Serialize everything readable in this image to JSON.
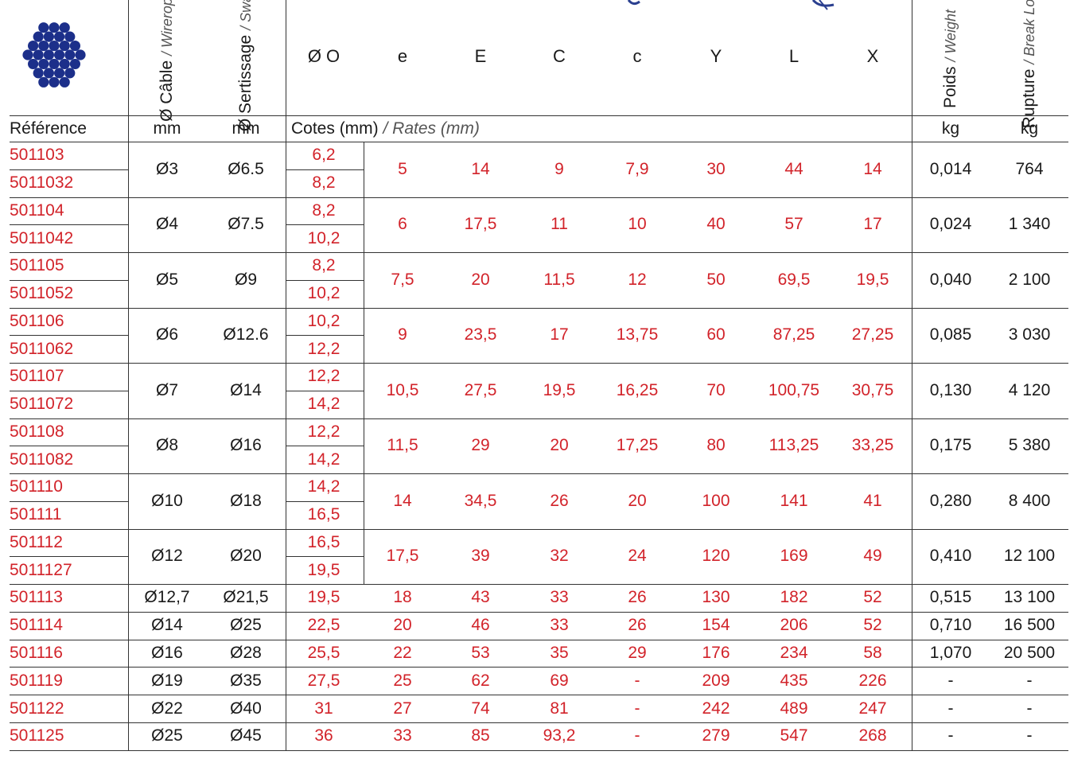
{
  "header": {
    "cable": {
      "main": "Ø Câble",
      "sub": "/ Wirerope"
    },
    "swaging": {
      "main": "Ø Sertissage",
      "sub": "/ Swaging"
    },
    "dims": [
      "Ø O",
      "e",
      "E",
      "C",
      "c",
      "Y",
      "L",
      "X"
    ],
    "weight": {
      "main": "Poids",
      "sub": "/ Weight"
    },
    "break_load": {
      "main": "Rupture",
      "sub": "/ Break Load"
    }
  },
  "units": {
    "reference": "Référence",
    "cable": "mm",
    "swaging": "mm",
    "cotes_main": "Cotes (mm)",
    "cotes_sub": "/ Rates (mm)",
    "weight": "kg",
    "break": "kg"
  },
  "paired_rows": [
    {
      "refs": [
        "501103",
        "5011032"
      ],
      "cable": "Ø3",
      "swaging": "Ø6.5",
      "o": [
        "6,2",
        "8,2"
      ],
      "e": "5",
      "E": "14",
      "C": "9",
      "c": "7,9",
      "Y": "30",
      "L": "44",
      "X": "14",
      "weight": "0,014",
      "break": "764"
    },
    {
      "refs": [
        "501104",
        "5011042"
      ],
      "cable": "Ø4",
      "swaging": "Ø7.5",
      "o": [
        "8,2",
        "10,2"
      ],
      "e": "6",
      "E": "17,5",
      "C": "11",
      "c": "10",
      "Y": "40",
      "L": "57",
      "X": "17",
      "weight": "0,024",
      "break": "1 340"
    },
    {
      "refs": [
        "501105",
        "5011052"
      ],
      "cable": "Ø5",
      "swaging": "Ø9",
      "o": [
        "8,2",
        "10,2"
      ],
      "e": "7,5",
      "E": "20",
      "C": "11,5",
      "c": "12",
      "Y": "50",
      "L": "69,5",
      "X": "19,5",
      "weight": "0,040",
      "break": "2 100"
    },
    {
      "refs": [
        "501106",
        "5011062"
      ],
      "cable": "Ø6",
      "swaging": "Ø12.6",
      "o": [
        "10,2",
        "12,2"
      ],
      "e": "9",
      "E": "23,5",
      "C": "17",
      "c": "13,75",
      "Y": "60",
      "L": "87,25",
      "X": "27,25",
      "weight": "0,085",
      "break": "3 030"
    },
    {
      "refs": [
        "501107",
        "5011072"
      ],
      "cable": "Ø7",
      "swaging": "Ø14",
      "o": [
        "12,2",
        "14,2"
      ],
      "e": "10,5",
      "E": "27,5",
      "C": "19,5",
      "c": "16,25",
      "Y": "70",
      "L": "100,75",
      "X": "30,75",
      "weight": "0,130",
      "break": "4 120"
    },
    {
      "refs": [
        "501108",
        "5011082"
      ],
      "cable": "Ø8",
      "swaging": "Ø16",
      "o": [
        "12,2",
        "14,2"
      ],
      "e": "11,5",
      "E": "29",
      "C": "20",
      "c": "17,25",
      "Y": "80",
      "L": "113,25",
      "X": "33,25",
      "weight": "0,175",
      "break": "5 380"
    },
    {
      "refs": [
        "501110",
        "501111"
      ],
      "cable": "Ø10",
      "swaging": "Ø18",
      "o": [
        "14,2",
        "16,5"
      ],
      "e": "14",
      "E": "34,5",
      "C": "26",
      "c": "20",
      "Y": "100",
      "L": "141",
      "X": "41",
      "weight": "0,280",
      "break": "8 400"
    },
    {
      "refs": [
        "501112",
        "5011127"
      ],
      "cable": "Ø12",
      "swaging": "Ø20",
      "o": [
        "16,5",
        "19,5"
      ],
      "e": "17,5",
      "E": "39",
      "C": "32",
      "c": "24",
      "Y": "120",
      "L": "169",
      "X": "49",
      "weight": "0,410",
      "break": "12 100"
    }
  ],
  "single_rows": [
    {
      "ref": "501113",
      "cable": "Ø12,7",
      "swaging": "Ø21,5",
      "o": "19,5",
      "e": "18",
      "E": "43",
      "C": "33",
      "c": "26",
      "Y": "130",
      "L": "182",
      "X": "52",
      "weight": "0,515",
      "break": "13 100"
    },
    {
      "ref": "501114",
      "cable": "Ø14",
      "swaging": "Ø25",
      "o": "22,5",
      "e": "20",
      "E": "46",
      "C": "33",
      "c": "26",
      "Y": "154",
      "L": "206",
      "X": "52",
      "weight": "0,710",
      "break": "16 500"
    },
    {
      "ref": "501116",
      "cable": "Ø16",
      "swaging": "Ø28",
      "o": "25,5",
      "e": "22",
      "E": "53",
      "C": "35",
      "c": "29",
      "Y": "176",
      "L": "234",
      "X": "58",
      "weight": "1,070",
      "break": "20 500"
    },
    {
      "ref": "501119",
      "cable": "Ø19",
      "swaging": "Ø35",
      "o": "27,5",
      "e": "25",
      "E": "62",
      "C": "69",
      "c": "-",
      "Y": "209",
      "L": "435",
      "X": "226",
      "weight": "-",
      "break": "-"
    },
    {
      "ref": "501122",
      "cable": "Ø22",
      "swaging": "Ø40",
      "o": "31",
      "e": "27",
      "E": "74",
      "C": "81",
      "c": "-",
      "Y": "242",
      "L": "489",
      "X": "247",
      "weight": "-",
      "break": "-"
    },
    {
      "ref": "501125",
      "cable": "Ø25",
      "swaging": "Ø45",
      "o": "36",
      "e": "33",
      "E": "85",
      "C": "93,2",
      "c": "-",
      "Y": "279",
      "L": "547",
      "X": "268",
      "weight": "-",
      "break": "-"
    }
  ],
  "colors": {
    "accent_red": "#d2232a",
    "wire_blue": "#1c2f8a",
    "text": "#1a1a1a",
    "sub_grey": "#555555"
  },
  "icons": {
    "logo": "wire-strand-icon"
  }
}
